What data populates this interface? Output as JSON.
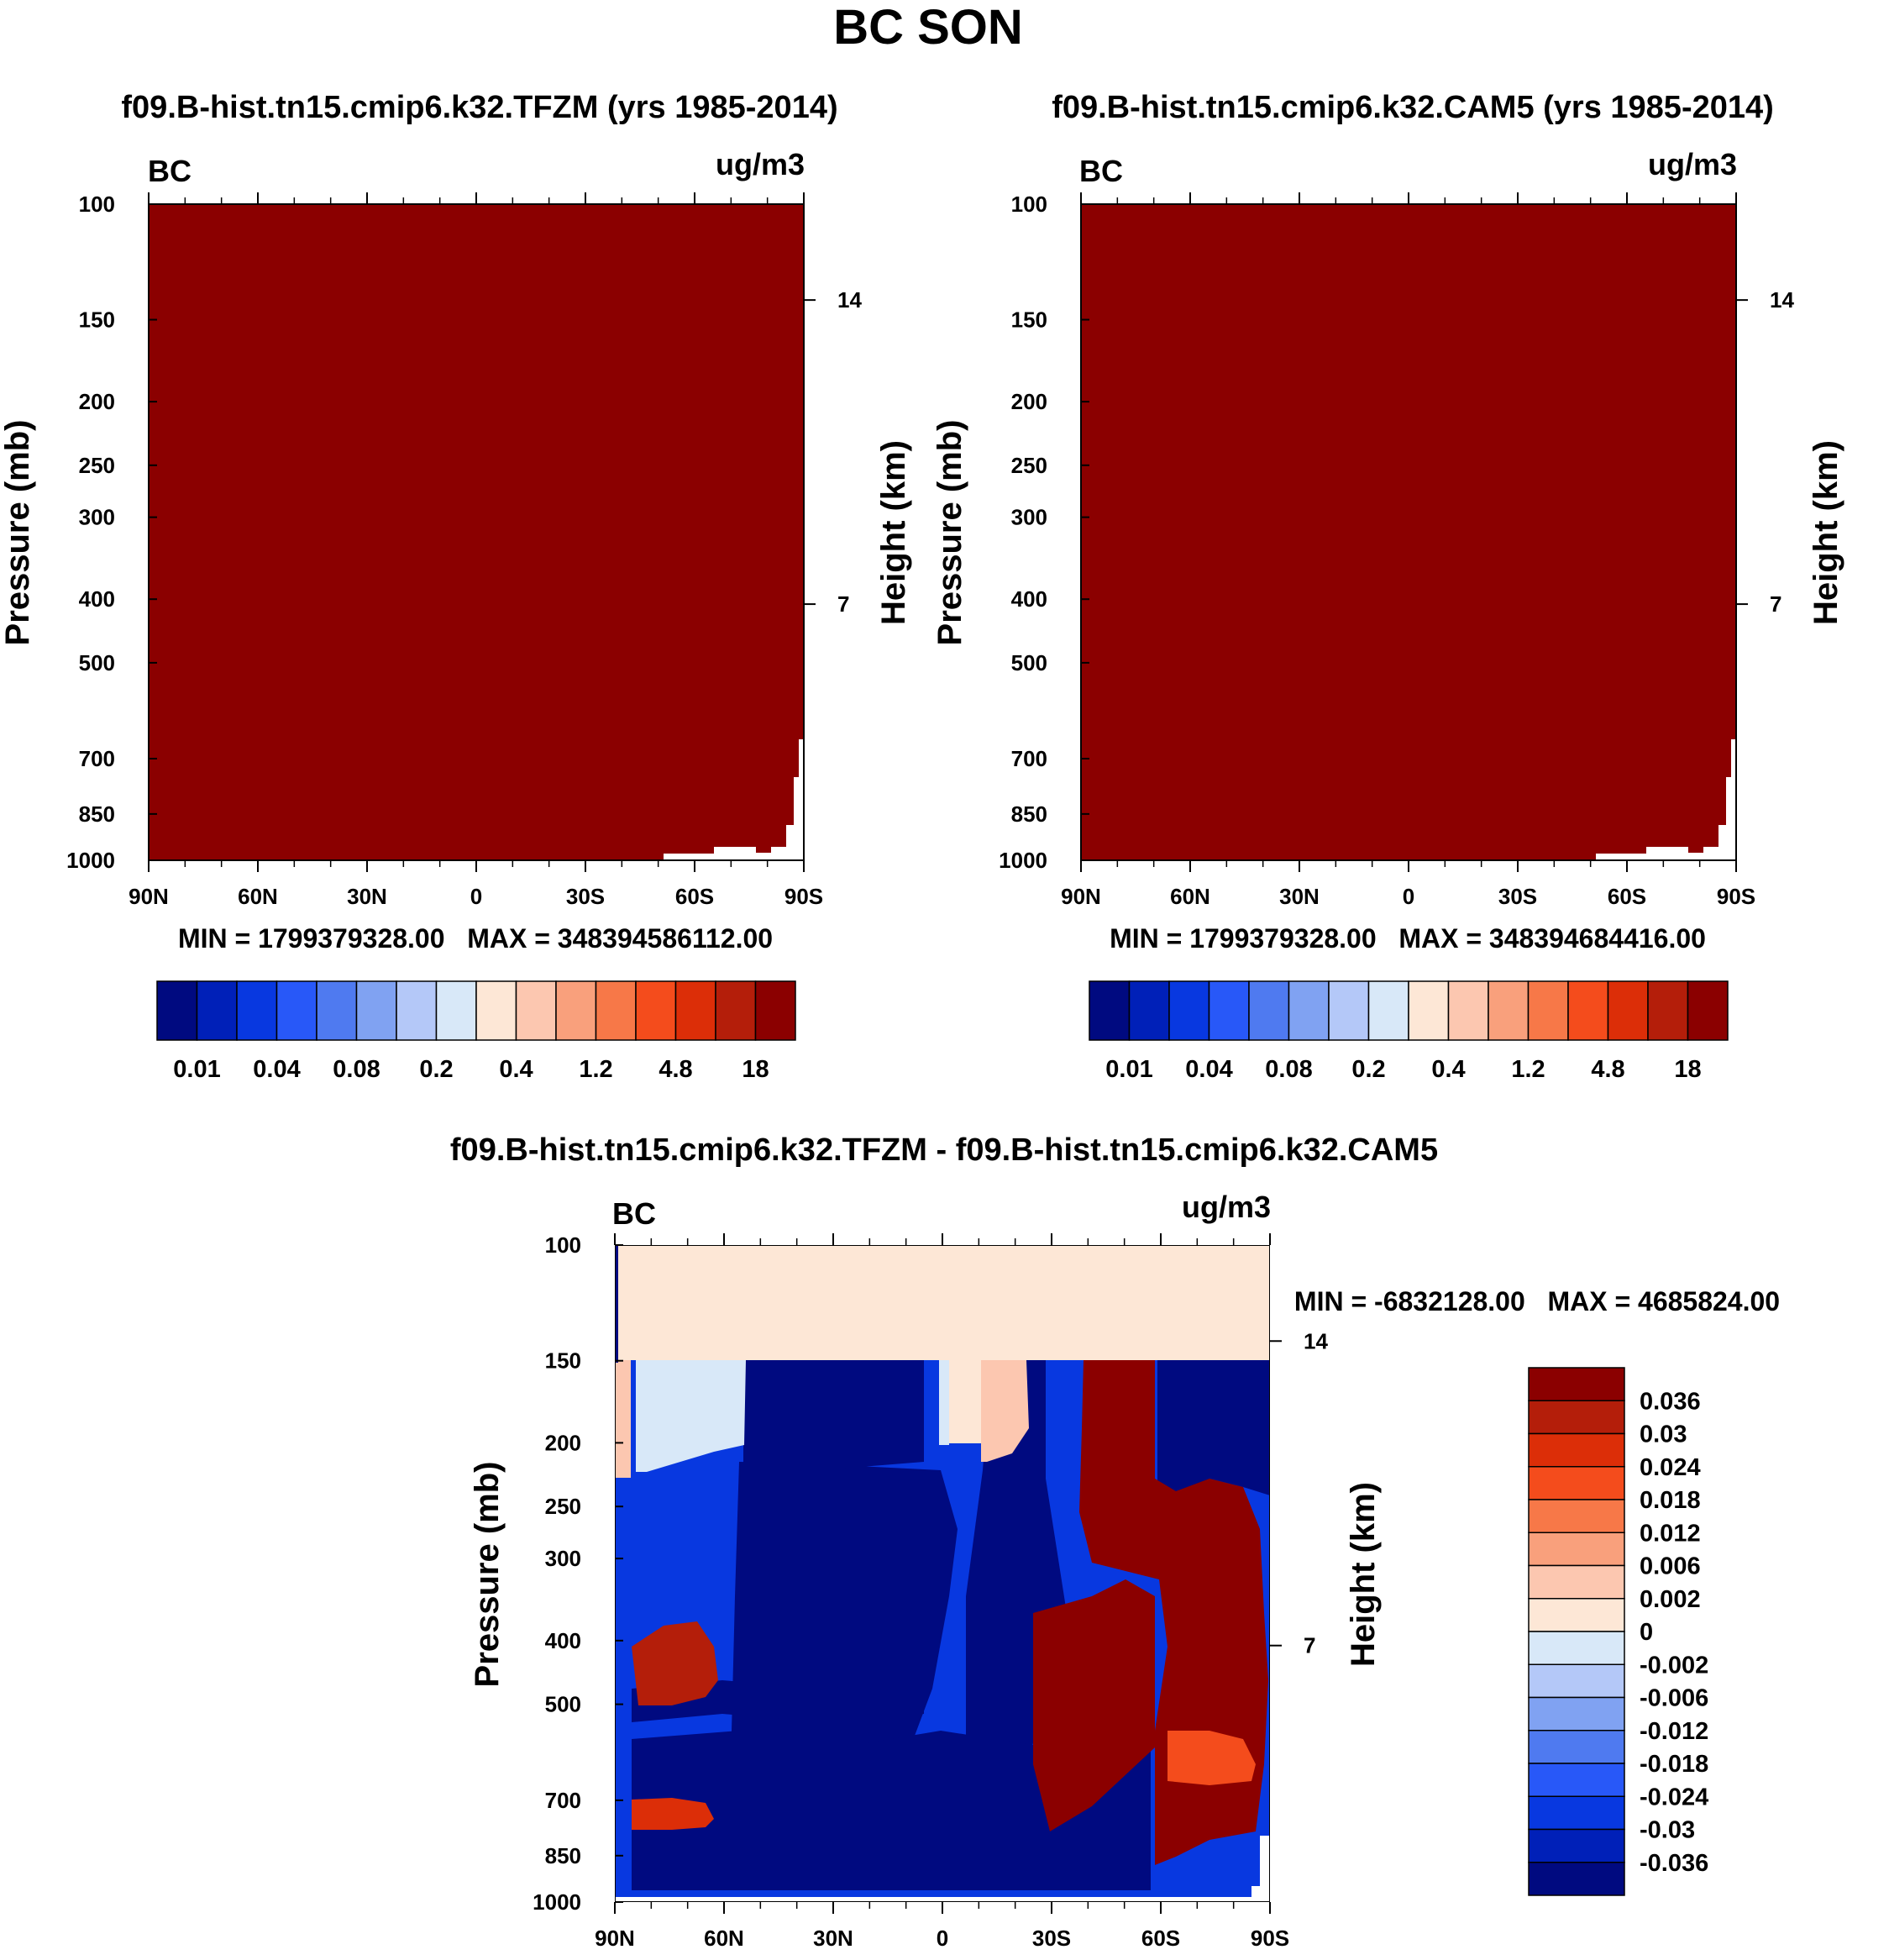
{
  "figure": {
    "title": "BC SON"
  },
  "colors": {
    "fill_dark_red": "#8b0000",
    "diff_upper_band": "#fde7d6",
    "missing": "#ffffff"
  },
  "colorbar_abs": {
    "colors": [
      "#000a80",
      "#0020b8",
      "#0838e0",
      "#2858f8",
      "#4f7af0",
      "#80a2f2",
      "#b4c8f8",
      "#d8e8f8",
      "#fde7d6",
      "#fcc7b0",
      "#f9a07c",
      "#f77848",
      "#f44c1c",
      "#dc2e08",
      "#b41e0a",
      "#8b0000"
    ],
    "labels": [
      "0.01",
      "0.04",
      "0.08",
      "0.2",
      "0.4",
      "1.2",
      "4.8",
      "18"
    ]
  },
  "colorbar_diff": {
    "colors": [
      "#000a80",
      "#0020b8",
      "#0838e0",
      "#2858f8",
      "#4f7af0",
      "#80a2f2",
      "#b4c8f8",
      "#d8e8f8",
      "#fde7d6",
      "#fcc7b0",
      "#f9a07c",
      "#f77848",
      "#f44c1c",
      "#dc2e08",
      "#b41e0a",
      "#8b0000"
    ],
    "labels": [
      "0.036",
      "0.03",
      "0.024",
      "0.018",
      "0.012",
      "0.006",
      "0.002",
      "0",
      "-0.002",
      "-0.006",
      "-0.012",
      "-0.018",
      "-0.024",
      "-0.03",
      "-0.036"
    ]
  },
  "chart_data": [
    {
      "type": "heatmap",
      "title": "f09.B-hist.tn15.cmip6.k32.TFZM (yrs 1985-2014)",
      "corner_left": "BC",
      "corner_right": "ug/m3",
      "ylabel": "Pressure (mb)",
      "ylabel_right": "Height (km)",
      "x_ticks": [
        "90N",
        "60N",
        "30N",
        "0",
        "30S",
        "60S",
        "90S"
      ],
      "x_range": [
        90,
        -90
      ],
      "y_ticks": [
        "100",
        "150",
        "200",
        "250",
        "300",
        "400",
        "500",
        "700",
        "850",
        "1000"
      ],
      "y_range": [
        1000,
        100
      ],
      "y_scale": "log",
      "height_ticks": [
        "14",
        "7"
      ],
      "min_max": "MIN = 1799379328.00   MAX = 348394586112.00"
    },
    {
      "type": "heatmap",
      "title": "f09.B-hist.tn15.cmip6.k32.CAM5 (yrs 1985-2014)",
      "corner_left": "BC",
      "corner_right": "ug/m3",
      "ylabel": "Pressure (mb)",
      "ylabel_right": "Height (km)",
      "x_ticks": [
        "90N",
        "60N",
        "30N",
        "0",
        "30S",
        "60S",
        "90S"
      ],
      "x_range": [
        90,
        -90
      ],
      "y_ticks": [
        "100",
        "150",
        "200",
        "250",
        "300",
        "400",
        "500",
        "700",
        "850",
        "1000"
      ],
      "y_range": [
        1000,
        100
      ],
      "y_scale": "log",
      "height_ticks": [
        "14",
        "7"
      ],
      "min_max": "MIN = 1799379328.00   MAX = 348394684416.00"
    },
    {
      "type": "heatmap",
      "title": "f09.B-hist.tn15.cmip6.k32.TFZM - f09.B-hist.tn15.cmip6.k32.CAM5",
      "corner_left": "BC",
      "corner_right": "ug/m3",
      "ylabel": "Pressure (mb)",
      "ylabel_right": "Height (km)",
      "x_ticks": [
        "90N",
        "60N",
        "30N",
        "0",
        "30S",
        "60S",
        "90S"
      ],
      "x_range": [
        90,
        -90
      ],
      "y_ticks": [
        "100",
        "150",
        "200",
        "250",
        "300",
        "400",
        "500",
        "700",
        "850",
        "1000"
      ],
      "y_range": [
        1000,
        100
      ],
      "y_scale": "log",
      "height_ticks": [
        "14",
        "7"
      ],
      "min_max": "MIN = -6832128.00   MAX = 4685824.00"
    }
  ]
}
